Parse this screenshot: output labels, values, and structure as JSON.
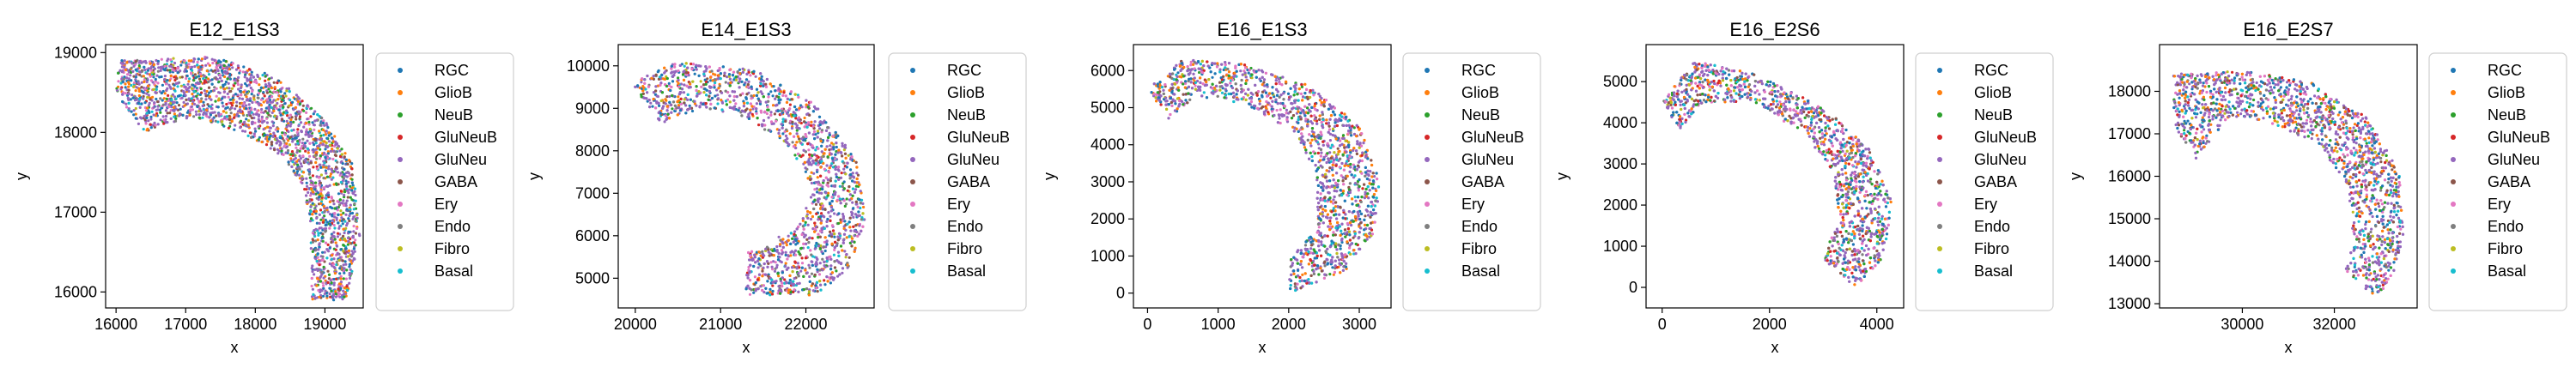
{
  "legend_entries": [
    "RGC",
    "GlioB",
    "NeuB",
    "GluNeuB",
    "GluNeu",
    "GABA",
    "Ery",
    "Endo",
    "Fibro",
    "Basal"
  ],
  "colors": {
    "RGC": "#1f77b4",
    "GlioB": "#ff7f0e",
    "NeuB": "#2ca02c",
    "GluNeuB": "#d62728",
    "GluNeu": "#9467bd",
    "GABA": "#8c564b",
    "Ery": "#e377c2",
    "Endo": "#7f7f7f",
    "Fibro": "#bcbd22",
    "Basal": "#17becf"
  },
  "chart_data": [
    {
      "type": "scatter",
      "title": "E12_E1S3",
      "xlabel": "x",
      "ylabel": "y",
      "xlim": [
        15850,
        19550
      ],
      "ylim": [
        15800,
        19100
      ],
      "xticks": [
        16000,
        17000,
        18000,
        19000
      ],
      "yticks": [
        16000,
        17000,
        18000,
        19000
      ],
      "tick_labels_x": [
        "16000",
        "17000",
        "18000",
        "19000"
      ],
      "tick_labels_y": [
        "16000",
        "17000",
        "18000",
        "19000"
      ],
      "grid": false,
      "legend_position": "right-outside",
      "legend_title": "",
      "series_names": [
        "RGC",
        "GlioB",
        "NeuB",
        "GluNeuB",
        "GluNeu",
        "GABA",
        "Ery",
        "Endo",
        "Fibro",
        "Basal"
      ],
      "shape_outline": [
        [
          16050,
          18900
        ],
        [
          17400,
          18950
        ],
        [
          18300,
          18700
        ],
        [
          19000,
          18150
        ],
        [
          19400,
          17600
        ],
        [
          19500,
          16700
        ],
        [
          19300,
          15900
        ],
        [
          18800,
          15900
        ],
        [
          18800,
          16800
        ],
        [
          18700,
          17300
        ],
        [
          18400,
          17700
        ],
        [
          17800,
          18000
        ],
        [
          17100,
          18200
        ],
        [
          16700,
          18100
        ],
        [
          16400,
          18000
        ],
        [
          16000,
          18500
        ]
      ]
    },
    {
      "type": "scatter",
      "title": "E14_E1S3",
      "xlabel": "x",
      "ylabel": "y",
      "xlim": [
        19800,
        22800
      ],
      "ylim": [
        4300,
        10500
      ],
      "xticks": [
        20000,
        21000,
        22000
      ],
      "yticks": [
        5000,
        6000,
        7000,
        8000,
        9000,
        10000
      ],
      "tick_labels_x": [
        "20000",
        "21000",
        "22000"
      ],
      "tick_labels_y": [
        "5000",
        "6000",
        "7000",
        "8000",
        "9000",
        "10000"
      ],
      "grid": false,
      "legend_position": "right-outside",
      "series_names": [
        "RGC",
        "GlioB",
        "NeuB",
        "GluNeuB",
        "GluNeu",
        "GABA",
        "Ery",
        "Endo",
        "Fibro",
        "Basal"
      ],
      "shape_outline": [
        [
          19950,
          9600
        ],
        [
          20500,
          10100
        ],
        [
          21400,
          9900
        ],
        [
          22100,
          9100
        ],
        [
          22600,
          7800
        ],
        [
          22700,
          6400
        ],
        [
          22500,
          5200
        ],
        [
          22100,
          4600
        ],
        [
          21300,
          4600
        ],
        [
          21300,
          5600
        ],
        [
          21900,
          6200
        ],
        [
          22100,
          7100
        ],
        [
          21800,
          8100
        ],
        [
          21300,
          8800
        ],
        [
          20800,
          9000
        ],
        [
          20300,
          8600
        ]
      ]
    },
    {
      "type": "scatter",
      "title": "E16_E1S3",
      "xlabel": "x",
      "ylabel": "y",
      "xlim": [
        -200,
        3450
      ],
      "ylim": [
        -400,
        6700
      ],
      "xticks": [
        0,
        1000,
        2000,
        3000
      ],
      "yticks": [
        0,
        1000,
        2000,
        3000,
        4000,
        5000,
        6000
      ],
      "tick_labels_x": [
        "0",
        "1000",
        "2000",
        "3000"
      ],
      "tick_labels_y": [
        "0",
        "1000",
        "2000",
        "3000",
        "4000",
        "5000",
        "6000"
      ],
      "grid": false,
      "legend_position": "right-outside",
      "series_names": [
        "RGC",
        "GlioB",
        "NeuB",
        "GluNeuB",
        "GluNeu",
        "GABA",
        "Ery",
        "Endo",
        "Fibro",
        "Basal"
      ],
      "shape_outline": [
        [
          0,
          5500
        ],
        [
          500,
          6300
        ],
        [
          1300,
          6200
        ],
        [
          2300,
          5600
        ],
        [
          3000,
          4500
        ],
        [
          3300,
          3000
        ],
        [
          3200,
          1600
        ],
        [
          2800,
          600
        ],
        [
          2000,
          0
        ],
        [
          2000,
          900
        ],
        [
          2400,
          1800
        ],
        [
          2400,
          3200
        ],
        [
          2100,
          4300
        ],
        [
          1400,
          5100
        ],
        [
          700,
          5300
        ],
        [
          300,
          4700
        ]
      ]
    },
    {
      "type": "scatter",
      "title": "E16_E2S6",
      "xlabel": "x",
      "ylabel": "y",
      "xlim": [
        -300,
        4500
      ],
      "ylim": [
        -500,
        5900
      ],
      "xticks": [
        0,
        2000,
        4000
      ],
      "yticks": [
        0,
        1000,
        2000,
        3000,
        4000,
        5000
      ],
      "tick_labels_x": [
        "0",
        "2000",
        "4000"
      ],
      "tick_labels_y": [
        "0",
        "1000",
        "2000",
        "3000",
        "4000",
        "5000"
      ],
      "grid": false,
      "legend_position": "right-outside",
      "series_names": [
        "RGC",
        "GlioB",
        "NeuB",
        "GluNeuB",
        "GluNeu",
        "GABA",
        "Ery",
        "Endo",
        "Fibro",
        "Basal"
      ],
      "shape_outline": [
        [
          0,
          4500
        ],
        [
          600,
          5500
        ],
        [
          1700,
          5200
        ],
        [
          3000,
          4400
        ],
        [
          3900,
          3300
        ],
        [
          4300,
          2000
        ],
        [
          4100,
          700
        ],
        [
          3600,
          0
        ],
        [
          3000,
          700
        ],
        [
          3300,
          1700
        ],
        [
          3200,
          2800
        ],
        [
          2600,
          3800
        ],
        [
          1600,
          4500
        ],
        [
          800,
          4500
        ],
        [
          300,
          3800
        ]
      ]
    },
    {
      "type": "scatter",
      "title": "E16_E2S7",
      "xlabel": "x",
      "ylabel": "y",
      "xlim": [
        28200,
        33800
      ],
      "ylim": [
        12900,
        19100
      ],
      "xticks": [
        30000,
        32000
      ],
      "yticks": [
        13000,
        14000,
        15000,
        16000,
        17000,
        18000
      ],
      "tick_labels_x": [
        "30000",
        "32000"
      ],
      "tick_labels_y": [
        "13000",
        "14000",
        "15000",
        "16000",
        "17000",
        "18000"
      ],
      "grid": false,
      "legend_position": "right-outside",
      "series_names": [
        "RGC",
        "GlioB",
        "NeuB",
        "GluNeuB",
        "GluNeu",
        "GABA",
        "Ery",
        "Endo",
        "Fibro",
        "Basal"
      ],
      "shape_outline": [
        [
          28500,
          18400
        ],
        [
          30000,
          18500
        ],
        [
          31500,
          18200
        ],
        [
          32700,
          17400
        ],
        [
          33400,
          16200
        ],
        [
          33500,
          14600
        ],
        [
          33200,
          13400
        ],
        [
          32800,
          13200
        ],
        [
          32200,
          13800
        ],
        [
          32400,
          14700
        ],
        [
          32300,
          15800
        ],
        [
          31600,
          16800
        ],
        [
          30500,
          17300
        ],
        [
          29700,
          17400
        ],
        [
          29000,
          16400
        ],
        [
          28500,
          17200
        ]
      ]
    }
  ]
}
